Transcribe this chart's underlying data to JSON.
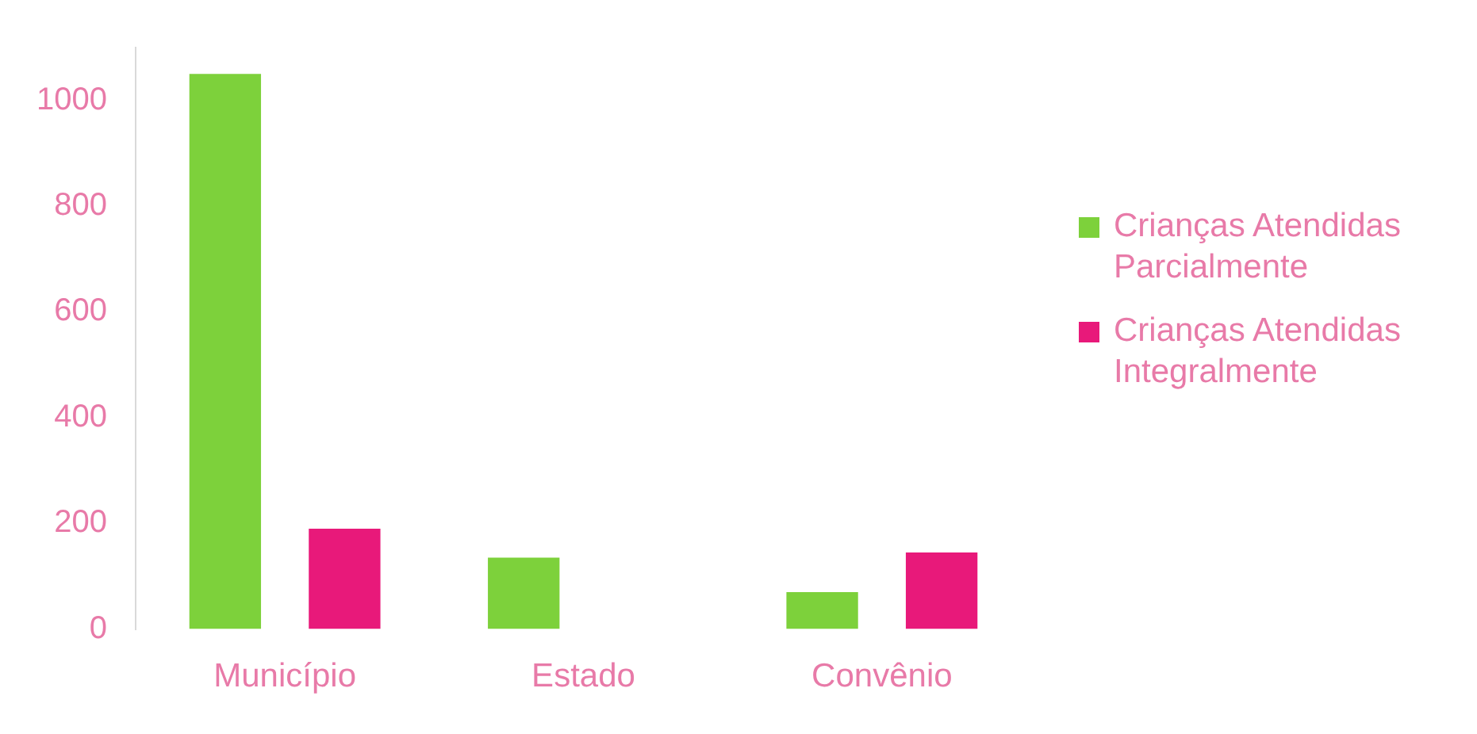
{
  "chart_data": {
    "type": "bar",
    "categories": [
      "Município",
      "Estado",
      "Convênio"
    ],
    "series": [
      {
        "name": "Crianças Atendidas Parcialmente",
        "color": "#7dd13b",
        "values": [
          1050,
          135,
          70
        ]
      },
      {
        "name": "Crianças Atendidas Integralmente",
        "color": "#e8197a",
        "values": [
          190,
          0,
          145
        ]
      }
    ],
    "ylim": [
      0,
      1100
    ],
    "yticks": [
      0,
      200,
      400,
      600,
      800,
      1000
    ],
    "grid": false,
    "legend": "right"
  }
}
